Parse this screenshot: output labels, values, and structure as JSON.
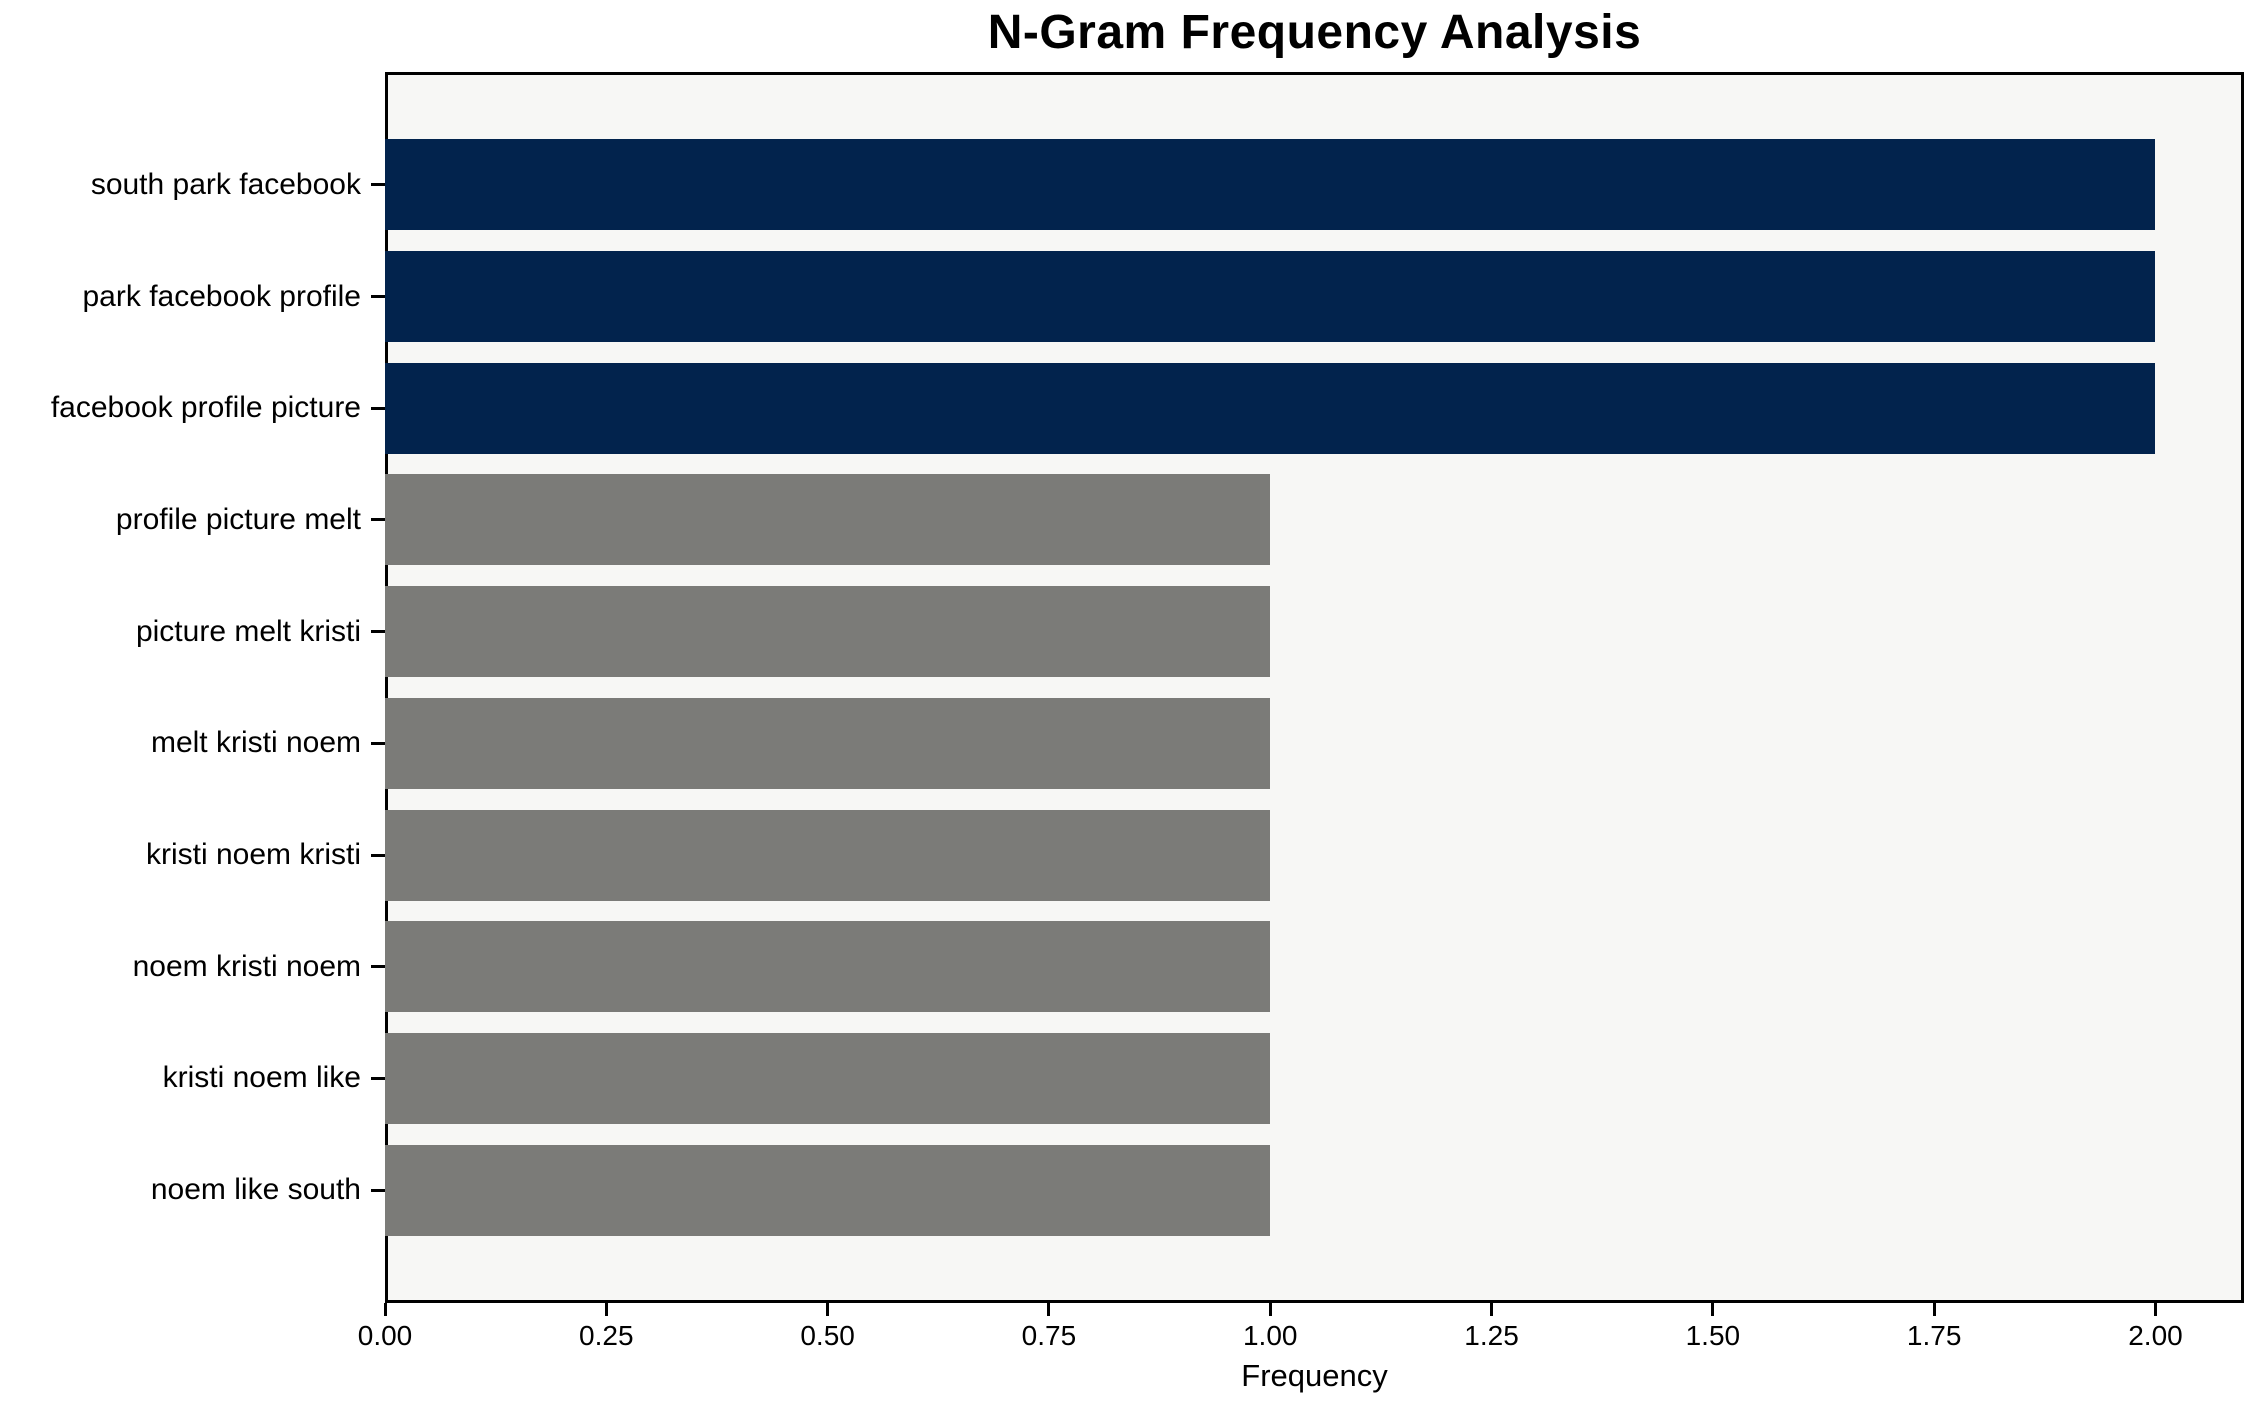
{
  "colors": {
    "highlight_bar": "#02234d",
    "default_bar": "#7b7b78",
    "plot_background": "#f7f7f5",
    "figure_background": "#ffffff",
    "spine": "#000000",
    "text": "#000000"
  },
  "chart_data": {
    "type": "bar",
    "orientation": "horizontal",
    "title": "N-Gram Frequency Analysis",
    "xlabel": "Frequency",
    "ylabel": "",
    "categories": [
      "south park facebook",
      "park facebook profile",
      "facebook profile picture",
      "profile picture melt",
      "picture melt kristi",
      "melt kristi noem",
      "kristi noem kristi",
      "noem kristi noem",
      "kristi noem like",
      "noem like south"
    ],
    "values": [
      2,
      2,
      2,
      1,
      1,
      1,
      1,
      1,
      1,
      1
    ],
    "bar_colors": [
      "#02234d",
      "#02234d",
      "#02234d",
      "#7b7b78",
      "#7b7b78",
      "#7b7b78",
      "#7b7b78",
      "#7b7b78",
      "#7b7b78",
      "#7b7b78"
    ],
    "xlim": [
      0,
      2.1
    ],
    "xticks": [
      {
        "value": 0.0,
        "label": "0.00"
      },
      {
        "value": 0.25,
        "label": "0.25"
      },
      {
        "value": 0.5,
        "label": "0.50"
      },
      {
        "value": 0.75,
        "label": "0.75"
      },
      {
        "value": 1.0,
        "label": "1.00"
      },
      {
        "value": 1.25,
        "label": "1.25"
      },
      {
        "value": 1.5,
        "label": "1.50"
      },
      {
        "value": 1.75,
        "label": "1.75"
      },
      {
        "value": 2.0,
        "label": "2.00"
      }
    ],
    "grid": false,
    "legend": null,
    "bar_relative_height": 0.8
  }
}
